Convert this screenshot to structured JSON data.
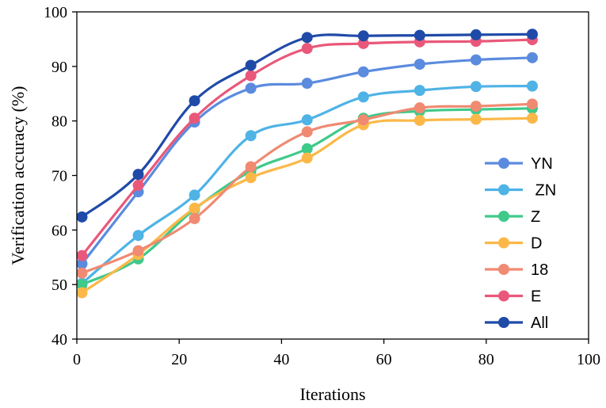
{
  "chart_data": {
    "type": "line",
    "title": "",
    "xlabel": "Iterations",
    "ylabel": "Verification accuracy (%)",
    "xlim": [
      0,
      100
    ],
    "ylim": [
      40,
      100
    ],
    "xticks": [
      0,
      20,
      40,
      60,
      80,
      100
    ],
    "yticks": [
      40,
      50,
      60,
      70,
      80,
      90,
      100
    ],
    "grid": false,
    "legend_position": "right",
    "x": [
      1,
      12,
      23,
      34,
      45,
      56,
      67,
      78,
      89
    ],
    "series": [
      {
        "name": "YN",
        "color": "#5B8BDE",
        "values": [
          53.8,
          67.0,
          79.8,
          86.0,
          86.9,
          89.0,
          90.4,
          91.2,
          91.6
        ]
      },
      {
        "name": " ZN",
        "color": "#4FB3E6",
        "values": [
          50.2,
          59.0,
          66.4,
          77.3,
          80.2,
          84.4,
          85.6,
          86.3,
          86.4
        ]
      },
      {
        "name": "Z",
        "color": "#3FC98A",
        "values": [
          50.0,
          54.7,
          63.8,
          70.8,
          74.9,
          80.5,
          81.8,
          82.1,
          82.3
        ]
      },
      {
        "name": "D",
        "color": "#FBB848",
        "values": [
          48.5,
          55.5,
          64.0,
          69.6,
          73.2,
          79.3,
          80.1,
          80.3,
          80.5
        ]
      },
      {
        "name": "18",
        "color": "#F08A72",
        "values": [
          52.1,
          56.2,
          62.1,
          71.6,
          78.0,
          80.2,
          82.4,
          82.7,
          83.1
        ]
      },
      {
        "name": "E",
        "color": "#E9587A",
        "values": [
          55.3,
          68.2,
          80.5,
          88.3,
          93.3,
          94.2,
          94.5,
          94.6,
          94.9
        ]
      },
      {
        "name": "All",
        "color": "#1F4AA8",
        "values": [
          62.4,
          70.2,
          83.7,
          90.2,
          95.3,
          95.6,
          95.7,
          95.8,
          95.9
        ]
      }
    ]
  }
}
